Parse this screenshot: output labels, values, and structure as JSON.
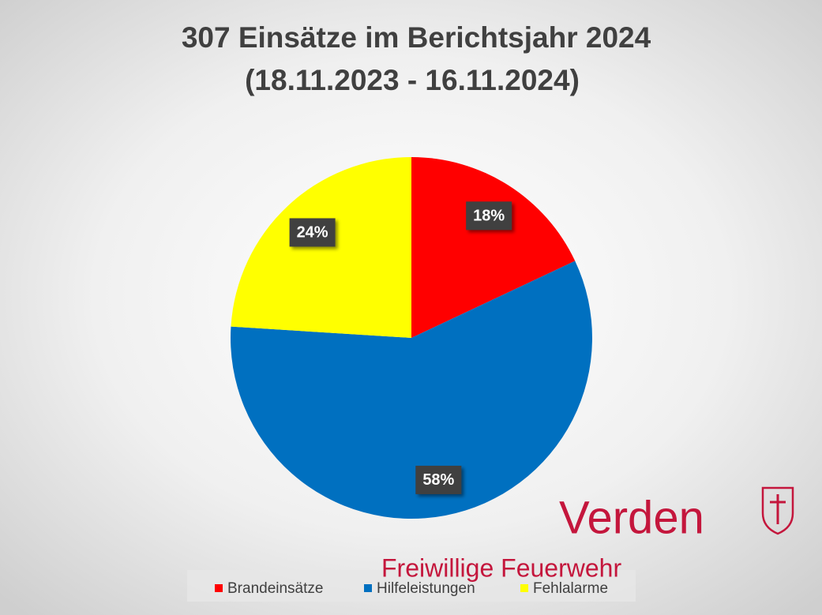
{
  "chart_data": {
    "type": "pie",
    "title": "307 Einsätze im Berichtsjahr 2024",
    "subtitle": "(18.11.2023 - 16.11.2024)",
    "categories": [
      "Brandeinsätze",
      "Hilfeleistungen",
      "Fehlalarme"
    ],
    "values": [
      18,
      58,
      24
    ],
    "value_labels": [
      "18%",
      "58%",
      "24%"
    ],
    "colors": [
      "#ff0000",
      "#0070c0",
      "#ffff00"
    ],
    "legend": "bottom",
    "annotations": [
      "Verden",
      "Freiwillige Feuerwehr"
    ]
  }
}
